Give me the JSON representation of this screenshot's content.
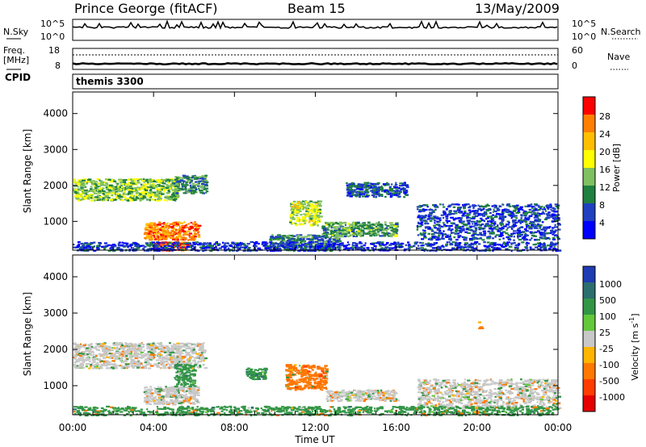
{
  "header": {
    "station": "Prince George (fitACF)",
    "beam": "Beam 15",
    "date": "13/May/2009"
  },
  "panels": {
    "nsky": {
      "label": "N.Sky",
      "left_ticks": [
        "10^5",
        "10^0"
      ],
      "right_ticks": [
        "10^5",
        "10^0"
      ],
      "right_label": "N.Search"
    },
    "freq": {
      "label_line1": "Freq.",
      "label_line2": "[MHz]",
      "left_ticks": [
        "18",
        "8"
      ],
      "right_ticks": [
        "60",
        "0"
      ],
      "right_label": "Nave"
    },
    "cpid": {
      "label": "CPID",
      "value": "themis 3300"
    }
  },
  "colorbars": {
    "power": {
      "title": "Power [dB]",
      "ticks": [
        "28",
        "24",
        "20",
        "16",
        "12",
        "8",
        "4"
      ],
      "colors": [
        "#ff0000",
        "#ff7f00",
        "#ffbf00",
        "#ffff00",
        "#80c060",
        "#208040",
        "#2040c0",
        "#0000ff"
      ]
    },
    "velocity": {
      "title": "Velocity [m s",
      "title_sup": "-1",
      "title_end": "]",
      "ticks": [
        "1000",
        "500",
        "100",
        "25",
        "-25",
        "-100",
        "-500",
        "-1000"
      ],
      "colors": [
        "#1e3cb4",
        "#2d6e6e",
        "#329646",
        "#64c83c",
        "#c8c8c8",
        "#ffb400",
        "#ff7800",
        "#ff3c00",
        "#e60000"
      ]
    }
  },
  "chart_data": [
    {
      "type": "heatmap",
      "title": "",
      "xlabel": "Time UT",
      "ylabel": "Slant Range [km]",
      "x_ticks": [
        "00:00",
        "04:00",
        "08:00",
        "12:00",
        "16:00",
        "20:00",
        "00:00"
      ],
      "y_ticks": [
        "1000",
        "2000",
        "3000",
        "4000"
      ],
      "xlim": [
        0,
        24
      ],
      "ylim": [
        200,
        4600
      ],
      "colorbar_label": "Power [dB]",
      "colorbar_range": [
        0,
        32
      ],
      "features": [
        {
          "t0": 0.0,
          "t1": 5.2,
          "r0": 1600,
          "r1": 2200,
          "value": 14
        },
        {
          "t0": 3.5,
          "t1": 6.2,
          "r0": 500,
          "r1": 1000,
          "value": 26
        },
        {
          "t0": 4.0,
          "t1": 5.7,
          "r0": 200,
          "r1": 450,
          "value": 28
        },
        {
          "t0": 5.0,
          "t1": 6.6,
          "r0": 1800,
          "r1": 2300,
          "value": 10
        },
        {
          "t0": 9.7,
          "t1": 13.2,
          "r0": 200,
          "r1": 650,
          "value": 9
        },
        {
          "t0": 10.7,
          "t1": 12.2,
          "r0": 900,
          "r1": 1600,
          "value": 16
        },
        {
          "t0": 12.3,
          "t1": 16.0,
          "r0": 600,
          "r1": 1000,
          "value": 12
        },
        {
          "t0": 13.5,
          "t1": 16.5,
          "r0": 1700,
          "r1": 2100,
          "value": 7
        },
        {
          "t0": 17.0,
          "t1": 24.0,
          "r0": 500,
          "r1": 1500,
          "value": 6
        },
        {
          "t0": 0.0,
          "t1": 24.0,
          "r0": 200,
          "r1": 450,
          "value": 5
        }
      ]
    },
    {
      "type": "heatmap",
      "title": "",
      "xlabel": "Time UT",
      "ylabel": "Slant Range [km]",
      "x_ticks": [
        "00:00",
        "04:00",
        "08:00",
        "12:00",
        "16:00",
        "20:00",
        "00:00"
      ],
      "y_ticks": [
        "1000",
        "2000",
        "3000",
        "4000"
      ],
      "xlim": [
        0,
        24
      ],
      "ylim": [
        200,
        4600
      ],
      "colorbar_label": "Velocity [m s-1]",
      "colorbar_range": [
        -1000,
        1000
      ],
      "features": [
        {
          "t0": 0.0,
          "t1": 6.5,
          "r0": 1500,
          "r1": 2200,
          "value": 0
        },
        {
          "t0": 3.5,
          "t1": 6.2,
          "r0": 500,
          "r1": 1000,
          "value": 0
        },
        {
          "t0": 5.0,
          "t1": 6.0,
          "r0": 1000,
          "r1": 1600,
          "value": 300
        },
        {
          "t0": 8.5,
          "t1": 9.5,
          "r0": 1200,
          "r1": 1500,
          "value": 400
        },
        {
          "t0": 10.5,
          "t1": 12.5,
          "r0": 900,
          "r1": 1600,
          "value": -200
        },
        {
          "t0": 12.5,
          "t1": 16.0,
          "r0": 600,
          "r1": 900,
          "value": 0
        },
        {
          "t0": 17.0,
          "t1": 24.0,
          "r0": 400,
          "r1": 1200,
          "value": 0
        },
        {
          "t0": 20.0,
          "t1": 20.2,
          "r0": 2600,
          "r1": 2800,
          "value": -150
        },
        {
          "t0": 0.0,
          "t1": 24.0,
          "r0": 200,
          "r1": 450,
          "value": 150
        }
      ]
    }
  ]
}
